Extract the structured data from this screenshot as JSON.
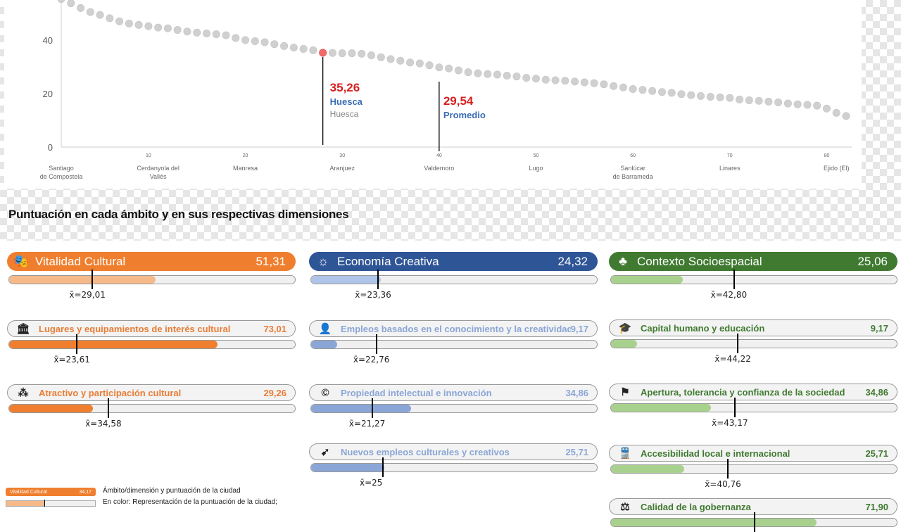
{
  "chart_data": {
    "type": "scatter",
    "ylim": [
      0,
      55
    ],
    "xlim": [
      1,
      82
    ],
    "y_ticks": [
      "0",
      "20",
      "40"
    ],
    "x_ticks": [
      "10",
      "20",
      "30",
      "40",
      "50",
      "60",
      "70",
      "80"
    ],
    "category_labels": [
      {
        "x": 1,
        "line1": "Santiago",
        "line2": "de Compostela"
      },
      {
        "x": 11,
        "line1": "Cerdanyola del",
        "line2": "Vallés"
      },
      {
        "x": 20,
        "line1": "Manresa",
        "line2": ""
      },
      {
        "x": 30,
        "line1": "Aranjuez",
        "line2": ""
      },
      {
        "x": 40,
        "line1": "Valdemoro",
        "line2": ""
      },
      {
        "x": 50,
        "line1": "Lugo",
        "line2": ""
      },
      {
        "x": 60,
        "line1": "Sanlúcar",
        "line2": "de Barrameda"
      },
      {
        "x": 70,
        "line1": "Linares",
        "line2": ""
      },
      {
        "x": 81,
        "line1": "Ejido (El)",
        "line2": ""
      }
    ],
    "x": [
      1,
      2,
      3,
      4,
      5,
      6,
      7,
      8,
      9,
      10,
      11,
      12,
      13,
      14,
      15,
      16,
      17,
      18,
      19,
      20,
      21,
      22,
      23,
      24,
      25,
      26,
      27,
      28,
      29,
      30,
      31,
      32,
      33,
      34,
      35,
      36,
      37,
      38,
      39,
      40,
      41,
      42,
      43,
      44,
      45,
      46,
      47,
      48,
      49,
      50,
      51,
      52,
      53,
      54,
      55,
      56,
      57,
      58,
      59,
      60,
      61,
      62,
      63,
      64,
      65,
      66,
      67,
      68,
      69,
      70,
      71,
      72,
      73,
      74,
      75,
      76,
      77,
      78,
      79,
      80,
      81,
      82
    ],
    "y": [
      55.4,
      53.8,
      52.0,
      50.5,
      49.4,
      48.2,
      47.0,
      46.2,
      45.7,
      45.2,
      44.7,
      44.4,
      43.8,
      43.2,
      42.8,
      42.5,
      42.2,
      41.8,
      40.8,
      40.0,
      39.6,
      39.2,
      38.5,
      37.8,
      37.2,
      36.7,
      36.2,
      35.26,
      35.2,
      35.1,
      35.1,
      34.9,
      34.3,
      33.6,
      32.9,
      32.3,
      31.6,
      31.3,
      30.6,
      29.8,
      29.4,
      28.7,
      28.0,
      27.6,
      27.3,
      27.1,
      26.7,
      26.4,
      25.9,
      25.6,
      25.2,
      25.0,
      24.8,
      24.5,
      24.2,
      23.9,
      23.5,
      22.8,
      22.3,
      21.7,
      21.4,
      21.0,
      20.6,
      20.3,
      19.8,
      19.4,
      19.1,
      18.8,
      18.6,
      18.4,
      17.8,
      17.5,
      17.3,
      17.0,
      16.7,
      16.3,
      16.0,
      15.8,
      15.5,
      14.4,
      12.8,
      11.6
    ],
    "highlight": {
      "x": 28,
      "value": "35,26",
      "name": "Huesca",
      "name2": "Huesca"
    },
    "average": {
      "x": 40,
      "value": "29,54",
      "name": "Promedio"
    },
    "colors": {
      "dot": "#d0d0d0",
      "highlight_dot": "#f26b6b",
      "value_text": "#d81e1e",
      "name_text": "#3a6cb5",
      "name2_text": "#888888"
    }
  },
  "section_title": "Puntuación en cada ámbito y en sus respectivas dimensiones",
  "columns": [
    {
      "color": "#ef7f2e",
      "light": "#f5b98a",
      "dark": "#e87d35",
      "header": {
        "label": "Vitalidad Cultural",
        "value": "51,31",
        "icon": "theatre-masks-icon",
        "glyph": "🎭",
        "score": 51.31,
        "avg_score": 29.01,
        "avg_label": "x̄=29,01"
      },
      "subs": [
        {
          "label": "Lugares y equipamientos de interés cultural",
          "value": "73,01",
          "icon": "museum-building-icon",
          "glyph": "🏛",
          "score": 73.01,
          "avg_score": 23.61,
          "avg_label": "x̄=23,61"
        },
        {
          "label": "Atractivo y participación cultural",
          "value": "29,26",
          "icon": "people-group-icon",
          "glyph": "⁂",
          "score": 29.26,
          "avg_score": 34.58,
          "avg_label": "x̄=34,58"
        }
      ]
    },
    {
      "color": "#2e5596",
      "light": "#aec4e8",
      "dark": "#8aa6d6",
      "header": {
        "label": "Economía Creativa",
        "value": "24,32",
        "icon": "lightbulb-gear-icon",
        "glyph": "☼",
        "score": 24.32,
        "avg_score": 23.36,
        "avg_label": "x̄=23,36"
      },
      "subs": [
        {
          "label": "Empleos basados en el conocimiento y la creatividad",
          "value": "9,17",
          "icon": "person-icon",
          "glyph": "👤",
          "score": 9.17,
          "avg_score": 22.76,
          "avg_label": "x̄=22,76"
        },
        {
          "label": "Propiedad intelectual e innovación",
          "value": "34,86",
          "icon": "copyright-icon",
          "glyph": "©",
          "score": 34.86,
          "avg_score": 21.27,
          "avg_label": "x̄=21,27"
        },
        {
          "label": "Nuevos empleos culturales y creativos",
          "value": "25,71",
          "icon": "rocket-icon",
          "glyph": "➹",
          "score": 25.71,
          "avg_score": 25,
          "avg_label": "x̄=25"
        }
      ]
    },
    {
      "color": "#3f7a30",
      "light": "#a9d18e",
      "dark": "#3f7a30",
      "header": {
        "label": "Contexto Socioespacial",
        "value": "25,06",
        "icon": "plant-leaves-icon",
        "glyph": "♣",
        "score": 25.06,
        "avg_score": 42.8,
        "avg_label": "x̄=42,80"
      },
      "subs": [
        {
          "label": "Capital humano y educación",
          "value": "9,17",
          "icon": "graduation-cap-icon",
          "glyph": "🎓",
          "score": 9.17,
          "avg_score": 44.22,
          "avg_label": "x̄=44,22"
        },
        {
          "label": "Apertura, tolerancia y confianza de la sociedad",
          "value": "34,86",
          "icon": "flag-icon",
          "glyph": "⚑",
          "score": 34.86,
          "avg_score": 43.17,
          "avg_label": "x̄=43,17"
        },
        {
          "label": "Accesibilidad local e internacional",
          "value": "25,71",
          "icon": "train-icon",
          "glyph": "🚆",
          "score": 25.71,
          "avg_score": 40.76,
          "avg_label": "x̄=40,76"
        },
        {
          "label": "Calidad de la gobernanza",
          "value": "71,90",
          "icon": "gavel-icon",
          "glyph": "⚖",
          "score": 71.9,
          "avg_score": 50,
          "avg_label": ""
        }
      ]
    }
  ],
  "legend": {
    "mini_label": "Vitalidad Cultural",
    "mini_value": "34,17",
    "line1": "Ámbito/dimensión y puntuación de la ciudad",
    "line2": "En color: Representación de la puntuación de la ciudad;"
  }
}
